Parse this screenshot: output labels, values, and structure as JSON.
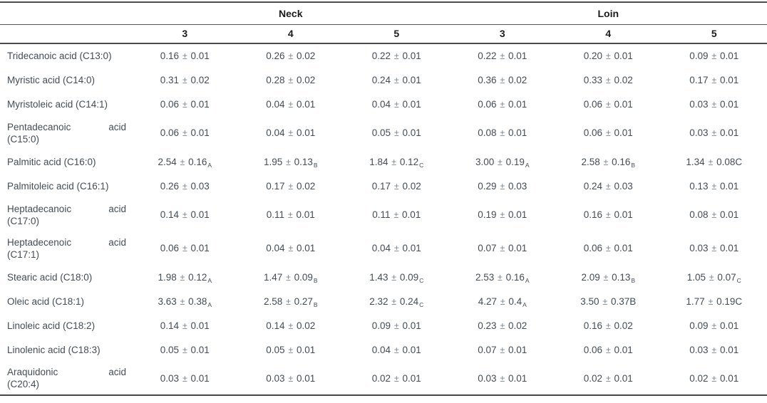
{
  "colors": {
    "body_text": "#424d57",
    "header_text": "#1b1b1b",
    "rule": "#4f4f4f",
    "plus_minus": "#7b858d",
    "background": "#ffffff"
  },
  "table": {
    "header": {
      "groups": [
        {
          "label": "Neck",
          "span": 3
        },
        {
          "label": "Loin",
          "span": 3
        }
      ],
      "sub_columns": [
        "3",
        "4",
        "5",
        "3",
        "4",
        "5"
      ]
    },
    "rows": [
      {
        "label": "Tridecanoic acid (C13:0)",
        "cells": [
          {
            "text": "0.16 ± 0.01",
            "sub": ""
          },
          {
            "text": "0.26 ± 0.02",
            "sub": ""
          },
          {
            "text": "0.22 ± 0.01",
            "sub": ""
          },
          {
            "text": "0.22 ± 0.01",
            "sub": ""
          },
          {
            "text": "0.20 ± 0.01",
            "sub": ""
          },
          {
            "text": "0.09 ± 0.01",
            "sub": ""
          }
        ]
      },
      {
        "label": "Myristic acid (C14:0)",
        "cells": [
          {
            "text": "0.31 ± 0.02",
            "sub": ""
          },
          {
            "text": "0.28 ± 0.02",
            "sub": ""
          },
          {
            "text": "0.24 ± 0.01",
            "sub": ""
          },
          {
            "text": "0.36 ± 0.02",
            "sub": ""
          },
          {
            "text": "0.33 ± 0.02",
            "sub": ""
          },
          {
            "text": "0.17 ± 0.01",
            "sub": ""
          }
        ]
      },
      {
        "label": "Myristoleic acid (C14:1)",
        "cells": [
          {
            "text": "0.06 ± 0.01",
            "sub": ""
          },
          {
            "text": "0.04 ± 0.01",
            "sub": ""
          },
          {
            "text": "0.04 ± 0.01",
            "sub": ""
          },
          {
            "text": "0.06 ± 0.01",
            "sub": ""
          },
          {
            "text": "0.06 ± 0.01",
            "sub": ""
          },
          {
            "text": "0.03 ± 0.01",
            "sub": ""
          }
        ]
      },
      {
        "label": "Pentadecanoic acid",
        "label2": "(C15:0)",
        "cells": [
          {
            "text": "0.06 ± 0.01",
            "sub": ""
          },
          {
            "text": "0.04 ± 0.01",
            "sub": ""
          },
          {
            "text": "0.05 ± 0.01",
            "sub": ""
          },
          {
            "text": "0.08 ± 0.01",
            "sub": ""
          },
          {
            "text": "0.06 ± 0.01",
            "sub": ""
          },
          {
            "text": "0.03 ± 0.01",
            "sub": ""
          }
        ]
      },
      {
        "label": "Palmitic acid (C16:0)",
        "cells": [
          {
            "text": "2.54 ± 0.16",
            "sub": "A"
          },
          {
            "text": "1.95 ± 0.13",
            "sub": "B"
          },
          {
            "text": "1.84 ± 0.12",
            "sub": "C"
          },
          {
            "text": "3.00 ± 0.19",
            "sub": "A"
          },
          {
            "text": "2.58 ± 0.16",
            "sub": "B"
          },
          {
            "text": "1.34 ± 0.08C",
            "sub": ""
          }
        ]
      },
      {
        "label": "Palmitoleic acid (C16:1)",
        "cells": [
          {
            "text": "0.26 ± 0.03",
            "sub": ""
          },
          {
            "text": "0.17 ± 0.02",
            "sub": ""
          },
          {
            "text": "0.17 ± 0.02",
            "sub": ""
          },
          {
            "text": "0.29 ± 0.03",
            "sub": ""
          },
          {
            "text": "0.24 ± 0.03",
            "sub": ""
          },
          {
            "text": "0.13 ± 0.01",
            "sub": ""
          }
        ]
      },
      {
        "label": "Heptadecanoic acid",
        "label2": "(C17:0)",
        "cells": [
          {
            "text": "0.14 ± 0.01",
            "sub": ""
          },
          {
            "text": "0.11 ± 0.01",
            "sub": ""
          },
          {
            "text": "0.11 ± 0.01",
            "sub": ""
          },
          {
            "text": "0.19 ± 0.01",
            "sub": ""
          },
          {
            "text": "0.16 ± 0.01",
            "sub": ""
          },
          {
            "text": "0.08 ± 0.01",
            "sub": ""
          }
        ]
      },
      {
        "label": "Heptadecenoic acid",
        "label2": "(C17:1)",
        "cells": [
          {
            "text": "0.06 ± 0.01",
            "sub": ""
          },
          {
            "text": "0.04 ± 0.01",
            "sub": ""
          },
          {
            "text": "0.04 ± 0.01",
            "sub": ""
          },
          {
            "text": "0.07 ± 0.01",
            "sub": ""
          },
          {
            "text": "0.06 ± 0.01",
            "sub": ""
          },
          {
            "text": "0.03 ± 0.01",
            "sub": ""
          }
        ]
      },
      {
        "label": "Stearic acid (C18:0)",
        "cells": [
          {
            "text": "1.98 ± 0.12",
            "sub": "A"
          },
          {
            "text": "1.47 ± 0.09",
            "sub": "B"
          },
          {
            "text": "1.43 ± 0.09",
            "sub": "C"
          },
          {
            "text": "2.53 ± 0.16",
            "sub": "A"
          },
          {
            "text": "2.09 ± 0.13",
            "sub": "B"
          },
          {
            "text": "1.05 ± 0.07",
            "sub": "C"
          }
        ]
      },
      {
        "label": "Oleic acid (C18:1)",
        "cells": [
          {
            "text": "3.63 ± 0.38",
            "sub": "A"
          },
          {
            "text": "2.58 ± 0.27",
            "sub": "B"
          },
          {
            "text": "2.32 ± 0.24",
            "sub": "C"
          },
          {
            "text": "4.27 ± 0.4",
            "sub": "A"
          },
          {
            "text": "3.50 ± 0.37B",
            "sub": ""
          },
          {
            "text": "1.77 ± 0.19C",
            "sub": ""
          }
        ]
      },
      {
        "label": "Linoleic acid (C18:2)",
        "cells": [
          {
            "text": "0.14 ± 0.01",
            "sub": ""
          },
          {
            "text": "0.14 ± 0.02",
            "sub": ""
          },
          {
            "text": "0.09 ± 0.01",
            "sub": ""
          },
          {
            "text": "0.23 ± 0.02",
            "sub": ""
          },
          {
            "text": "0.16 ± 0.02",
            "sub": ""
          },
          {
            "text": "0.09 ± 0.01",
            "sub": ""
          }
        ]
      },
      {
        "label": "Linolenic acid (C18:3)",
        "cells": [
          {
            "text": "0.05 ± 0.01",
            "sub": ""
          },
          {
            "text": "0.05 ± 0.01",
            "sub": ""
          },
          {
            "text": "0.04 ± 0.01",
            "sub": ""
          },
          {
            "text": "0.07 ± 0.01",
            "sub": ""
          },
          {
            "text": "0.06 ± 0.01",
            "sub": ""
          },
          {
            "text": "0.03 ± 0.01",
            "sub": ""
          }
        ]
      },
      {
        "label": "Araquidonic acid",
        "label2": "(C20:4)",
        "cells": [
          {
            "text": "0.03 ± 0.01",
            "sub": ""
          },
          {
            "text": "0.03 ± 0.01",
            "sub": ""
          },
          {
            "text": "0.02 ± 0.01",
            "sub": ""
          },
          {
            "text": "0.03 ± 0.01",
            "sub": ""
          },
          {
            "text": "0.02 ± 0.01",
            "sub": ""
          },
          {
            "text": "0.02 ± 0.01",
            "sub": ""
          }
        ]
      }
    ]
  }
}
